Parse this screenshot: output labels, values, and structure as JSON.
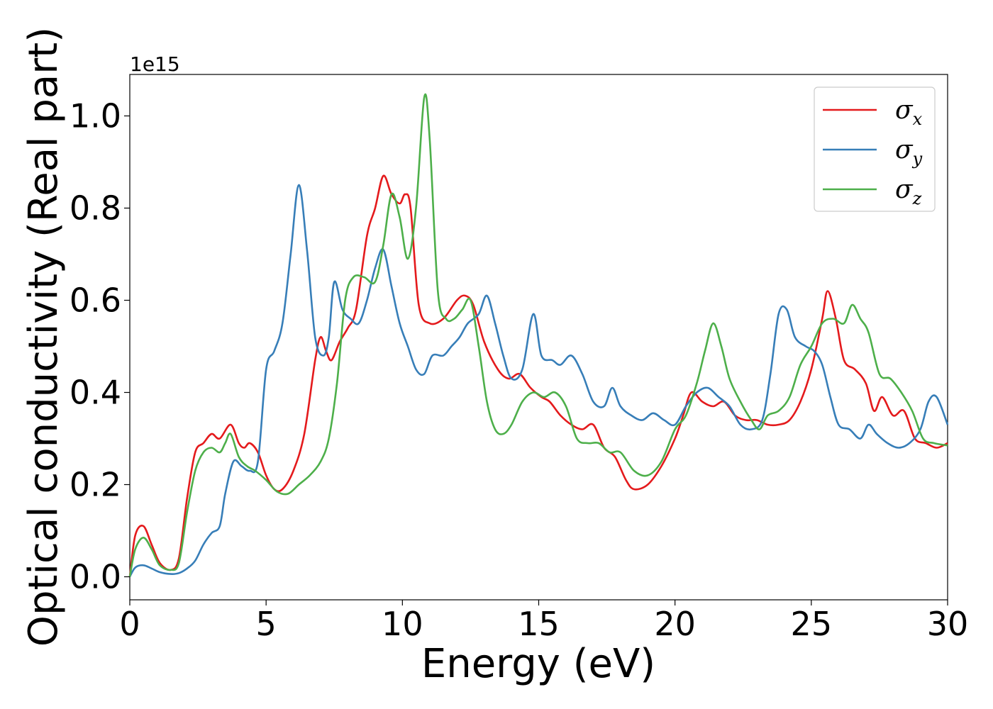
{
  "chart_data": {
    "type": "line",
    "title": "",
    "xlabel": "Energy (eV)",
    "ylabel": "Optical conductivity (Real part)",
    "y_offset_text": "1e15",
    "xlim": [
      0,
      30
    ],
    "ylim": [
      -0.05,
      1.09
    ],
    "xticks": [
      0,
      5,
      10,
      15,
      20,
      25,
      30
    ],
    "xtick_labels": [
      "0",
      "5",
      "10",
      "15",
      "20",
      "25",
      "30"
    ],
    "yticks": [
      0.0,
      0.2,
      0.4,
      0.6,
      0.8,
      1.0
    ],
    "ytick_labels": [
      "0.0",
      "0.2",
      "0.4",
      "0.6",
      "0.8",
      "1.0"
    ],
    "grid": false,
    "legend_position": "top-right",
    "series": [
      {
        "name": "σx",
        "label_base": "σ",
        "label_sub": "x",
        "color": "#e41a1c",
        "x": [
          0,
          0.2,
          0.5,
          0.8,
          1.1,
          1.5,
          1.8,
          2.1,
          2.4,
          2.7,
          3.0,
          3.3,
          3.7,
          4.0,
          4.2,
          4.4,
          4.7,
          5.0,
          5.3,
          5.6,
          6.0,
          6.4,
          6.8,
          7.0,
          7.2,
          7.4,
          7.7,
          8.0,
          8.3,
          8.7,
          9.0,
          9.3,
          9.6,
          9.9,
          10.1,
          10.3,
          10.6,
          11.0,
          11.5,
          12.0,
          12.3,
          12.6,
          13.0,
          13.5,
          13.9,
          14.3,
          14.7,
          15.1,
          15.4,
          15.8,
          16.2,
          16.6,
          17.0,
          17.4,
          17.8,
          18.2,
          18.5,
          19.0,
          19.5,
          20.0,
          20.3,
          20.6,
          21.0,
          21.4,
          21.8,
          22.2,
          22.6,
          23.0,
          23.4,
          23.8,
          24.2,
          24.6,
          25.0,
          25.4,
          25.6,
          25.9,
          26.2,
          26.6,
          27.0,
          27.3,
          27.6,
          28.0,
          28.4,
          28.8,
          29.2,
          29.6,
          30.0
        ],
        "y": [
          0.0,
          0.09,
          0.11,
          0.07,
          0.03,
          0.015,
          0.04,
          0.17,
          0.27,
          0.29,
          0.31,
          0.3,
          0.33,
          0.29,
          0.28,
          0.29,
          0.27,
          0.22,
          0.19,
          0.19,
          0.23,
          0.31,
          0.47,
          0.52,
          0.49,
          0.47,
          0.51,
          0.54,
          0.58,
          0.74,
          0.8,
          0.87,
          0.83,
          0.81,
          0.83,
          0.8,
          0.59,
          0.55,
          0.56,
          0.6,
          0.61,
          0.59,
          0.51,
          0.45,
          0.43,
          0.44,
          0.41,
          0.39,
          0.38,
          0.35,
          0.33,
          0.32,
          0.33,
          0.28,
          0.26,
          0.21,
          0.19,
          0.2,
          0.24,
          0.3,
          0.35,
          0.4,
          0.38,
          0.37,
          0.38,
          0.35,
          0.34,
          0.34,
          0.33,
          0.33,
          0.34,
          0.38,
          0.45,
          0.56,
          0.62,
          0.56,
          0.47,
          0.45,
          0.42,
          0.36,
          0.39,
          0.35,
          0.36,
          0.3,
          0.29,
          0.28,
          0.29
        ]
      },
      {
        "name": "σy",
        "label_base": "σ",
        "label_sub": "y",
        "color": "#377eb8",
        "x": [
          0,
          0.2,
          0.5,
          0.8,
          1.1,
          1.5,
          1.8,
          2.1,
          2.4,
          2.7,
          3.0,
          3.3,
          3.5,
          3.8,
          4.1,
          4.4,
          4.7,
          5.0,
          5.3,
          5.6,
          5.9,
          6.2,
          6.5,
          6.8,
          7.1,
          7.3,
          7.5,
          7.8,
          8.1,
          8.4,
          8.7,
          9.0,
          9.3,
          9.6,
          9.9,
          10.2,
          10.5,
          10.8,
          11.1,
          11.5,
          11.8,
          12.1,
          12.4,
          12.8,
          13.1,
          13.4,
          13.7,
          14.0,
          14.4,
          14.8,
          15.1,
          15.5,
          15.8,
          16.2,
          16.6,
          17.0,
          17.4,
          17.7,
          18.0,
          18.4,
          18.8,
          19.2,
          19.6,
          20.0,
          20.4,
          20.8,
          21.2,
          21.6,
          22.0,
          22.4,
          22.8,
          23.2,
          23.5,
          23.8,
          24.1,
          24.4,
          24.8,
          25.1,
          25.4,
          25.7,
          26.0,
          26.4,
          26.8,
          27.1,
          27.4,
          27.8,
          28.2,
          28.6,
          29.0,
          29.3,
          29.6,
          30.0
        ],
        "y": [
          0.0,
          0.02,
          0.025,
          0.018,
          0.01,
          0.006,
          0.008,
          0.018,
          0.035,
          0.07,
          0.095,
          0.11,
          0.18,
          0.25,
          0.24,
          0.23,
          0.25,
          0.45,
          0.49,
          0.55,
          0.7,
          0.85,
          0.71,
          0.52,
          0.48,
          0.52,
          0.64,
          0.58,
          0.56,
          0.55,
          0.6,
          0.67,
          0.71,
          0.63,
          0.55,
          0.5,
          0.45,
          0.44,
          0.48,
          0.48,
          0.5,
          0.52,
          0.55,
          0.57,
          0.61,
          0.55,
          0.48,
          0.43,
          0.45,
          0.57,
          0.48,
          0.47,
          0.46,
          0.48,
          0.44,
          0.38,
          0.37,
          0.41,
          0.37,
          0.35,
          0.34,
          0.355,
          0.34,
          0.33,
          0.37,
          0.4,
          0.41,
          0.39,
          0.37,
          0.33,
          0.32,
          0.34,
          0.44,
          0.57,
          0.58,
          0.52,
          0.5,
          0.49,
          0.46,
          0.39,
          0.33,
          0.32,
          0.3,
          0.33,
          0.31,
          0.29,
          0.28,
          0.29,
          0.32,
          0.38,
          0.39,
          0.33
        ]
      },
      {
        "name": "σz",
        "label_base": "σ",
        "label_sub": "z",
        "color": "#4daf4a",
        "x": [
          0,
          0.2,
          0.5,
          0.8,
          1.1,
          1.5,
          1.8,
          2.1,
          2.4,
          2.7,
          3.0,
          3.3,
          3.5,
          3.7,
          4.0,
          4.3,
          4.6,
          5.0,
          5.4,
          5.8,
          6.2,
          6.6,
          7.0,
          7.3,
          7.6,
          7.9,
          8.2,
          8.6,
          9.0,
          9.3,
          9.6,
          9.9,
          10.2,
          10.5,
          10.8,
          11.0,
          11.3,
          11.6,
          11.9,
          12.2,
          12.5,
          12.8,
          13.1,
          13.4,
          13.7,
          14.0,
          14.4,
          14.8,
          15.2,
          15.6,
          16.0,
          16.4,
          16.8,
          17.2,
          17.6,
          18.0,
          18.5,
          19.0,
          19.5,
          20.0,
          20.4,
          20.8,
          21.1,
          21.4,
          21.7,
          22.0,
          22.4,
          22.8,
          23.1,
          23.4,
          23.8,
          24.2,
          24.6,
          25.0,
          25.4,
          25.8,
          26.2,
          26.5,
          26.8,
          27.1,
          27.5,
          27.9,
          28.3,
          28.7,
          29.1,
          29.5,
          30.0
        ],
        "y": [
          0.0,
          0.06,
          0.085,
          0.06,
          0.025,
          0.015,
          0.03,
          0.14,
          0.23,
          0.27,
          0.28,
          0.27,
          0.29,
          0.31,
          0.26,
          0.24,
          0.23,
          0.21,
          0.185,
          0.18,
          0.2,
          0.22,
          0.25,
          0.3,
          0.42,
          0.6,
          0.65,
          0.65,
          0.64,
          0.72,
          0.83,
          0.78,
          0.69,
          0.8,
          1.04,
          0.95,
          0.62,
          0.56,
          0.56,
          0.58,
          0.6,
          0.5,
          0.38,
          0.32,
          0.31,
          0.33,
          0.38,
          0.4,
          0.39,
          0.4,
          0.37,
          0.3,
          0.29,
          0.29,
          0.27,
          0.27,
          0.23,
          0.22,
          0.25,
          0.32,
          0.35,
          0.42,
          0.49,
          0.55,
          0.5,
          0.43,
          0.38,
          0.34,
          0.32,
          0.35,
          0.36,
          0.39,
          0.46,
          0.5,
          0.55,
          0.56,
          0.55,
          0.59,
          0.56,
          0.53,
          0.44,
          0.43,
          0.4,
          0.36,
          0.3,
          0.29,
          0.285
        ]
      }
    ]
  }
}
